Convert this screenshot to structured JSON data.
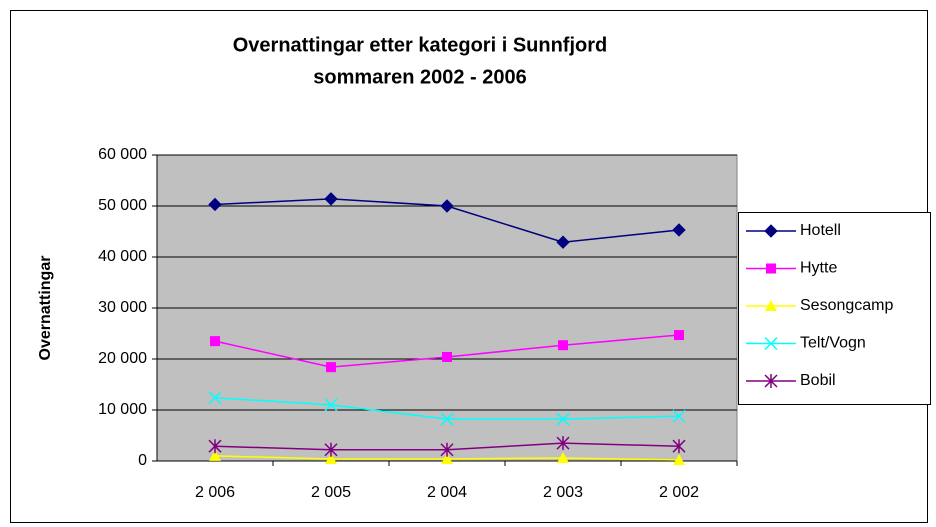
{
  "chart_data": {
    "type": "line",
    "title": [
      "Overnattingar etter kategori i Sunnfjord",
      "sommaren 2002 - 2006"
    ],
    "y_label": "Overnattingar",
    "categories": [
      "2 006",
      "2 005",
      "2 004",
      "2 003",
      "2 002"
    ],
    "ylim": [
      0,
      60000
    ],
    "yticks": [
      {
        "value": 0,
        "label": "0"
      },
      {
        "value": 10000,
        "label": "10 000"
      },
      {
        "value": 20000,
        "label": "20 000"
      },
      {
        "value": 30000,
        "label": "30 000"
      },
      {
        "value": 40000,
        "label": "40 000"
      },
      {
        "value": 50000,
        "label": "50 000"
      },
      {
        "value": 60000,
        "label": "60 000"
      }
    ],
    "grid": true,
    "legend": "right",
    "series": [
      {
        "name": "Hotell",
        "color": "#000080",
        "marker": "diamond",
        "values": [
          50300,
          51400,
          50000,
          42900,
          45300
        ]
      },
      {
        "name": "Hytte",
        "color": "#ff00ff",
        "marker": "square",
        "values": [
          23500,
          18400,
          20400,
          22700,
          24700
        ]
      },
      {
        "name": "Sesongcamp",
        "color": "#ffff00",
        "marker": "triangle",
        "values": [
          1000,
          400,
          400,
          600,
          200
        ]
      },
      {
        "name": "Telt/Vogn",
        "color": "#00ffff",
        "marker": "x",
        "values": [
          12400,
          11000,
          8200,
          8200,
          8800
        ]
      },
      {
        "name": "Bobil",
        "color": "#800080",
        "marker": "asterisk",
        "values": [
          2900,
          2200,
          2200,
          3500,
          2900
        ]
      }
    ]
  }
}
